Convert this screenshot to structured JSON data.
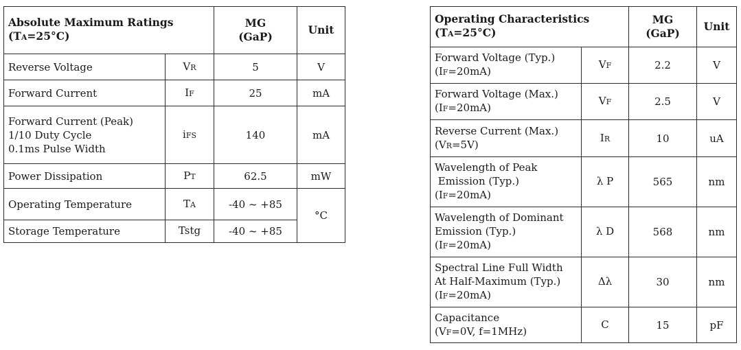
{
  "abs_max": {
    "title": "Absolute Maximum Ratings",
    "cond_prefix": "(T",
    "cond_sub": "A",
    "cond_suffix": "=25°C)",
    "col_mg_line1": "MG",
    "col_mg_line2": "(GaP)",
    "col_unit": "Unit",
    "rows": [
      {
        "param": [
          "Reverse Voltage"
        ],
        "sym": "V",
        "sym_sub": "R",
        "value": "5",
        "unit": "V"
      },
      {
        "param": [
          "Forward Current"
        ],
        "sym": "I",
        "sym_sub": "F",
        "value": "25",
        "unit": "mA"
      },
      {
        "param": [
          "Forward Current (Peak)",
          "1/10 Duty Cycle",
          "0.1ms Pulse Width"
        ],
        "sym": "i",
        "sym_sub": "FS",
        "value": "140",
        "unit": "mA"
      },
      {
        "param": [
          "Power Dissipation"
        ],
        "sym": "P",
        "sym_sub": "T",
        "value": "62.5",
        "unit": "mW"
      },
      {
        "param": [
          "Operating Temperature"
        ],
        "sym": "T",
        "sym_sub": "A",
        "value": "-40 ~ +85",
        "unit": "°C"
      },
      {
        "param": [
          "Storage Temperature"
        ],
        "sym": "Tstg",
        "sym_sub": "",
        "value": "-40 ~ +85",
        "unit": ""
      }
    ]
  },
  "op_char": {
    "title": "Operating Characteristics",
    "cond_prefix": "(T",
    "cond_sub": "A",
    "cond_suffix": "=25°C)",
    "col_mg_line1": "MG",
    "col_mg_line2": "(GaP)",
    "col_unit": "Unit",
    "rows": [
      {
        "param": [
          "Forward Voltage (Typ.)"
        ],
        "cond": {
          "pre": "(I",
          "sub": "F",
          "post": "=20mA)"
        },
        "sym": "V",
        "sym_sub": "F",
        "value": "2.2",
        "unit": "V"
      },
      {
        "param": [
          "Forward Voltage (Max.)"
        ],
        "cond": {
          "pre": "(I",
          "sub": "F",
          "post": "=20mA)"
        },
        "sym": "V",
        "sym_sub": "F",
        "value": "2.5",
        "unit": "V"
      },
      {
        "param": [
          "Reverse Current (Max.)"
        ],
        "cond": {
          "pre": "(V",
          "sub": "R",
          "post": "=5V)"
        },
        "sym": "I",
        "sym_sub": "R",
        "value": "10",
        "unit": "uA"
      },
      {
        "param": [
          "Wavelength of Peak",
          " Emission (Typ.)"
        ],
        "cond": {
          "pre": "(I",
          "sub": "F",
          "post": "=20mA)"
        },
        "sym": "λ P",
        "sym_sub": "",
        "value": "565",
        "unit": "nm"
      },
      {
        "param": [
          "Wavelength of Dominant",
          "Emission (Typ.)"
        ],
        "cond": {
          "pre": "(I",
          "sub": "F",
          "post": "=20mA)"
        },
        "sym": "λ D",
        "sym_sub": "",
        "value": "568",
        "unit": "nm"
      },
      {
        "param": [
          "Spectral Line Full Width",
          "At Half-Maximum (Typ.)"
        ],
        "cond": {
          "pre": "(I",
          "sub": "F",
          "post": "=20mA)"
        },
        "sym": "Δλ",
        "sym_sub": "",
        "value": "30",
        "unit": "nm"
      },
      {
        "param": [
          "Capacitance"
        ],
        "cond": {
          "pre": "(V",
          "sub": "F",
          "post": "=0V, f=1MHz)"
        },
        "sym": "C",
        "sym_sub": "",
        "value": "15",
        "unit": "pF"
      }
    ]
  }
}
